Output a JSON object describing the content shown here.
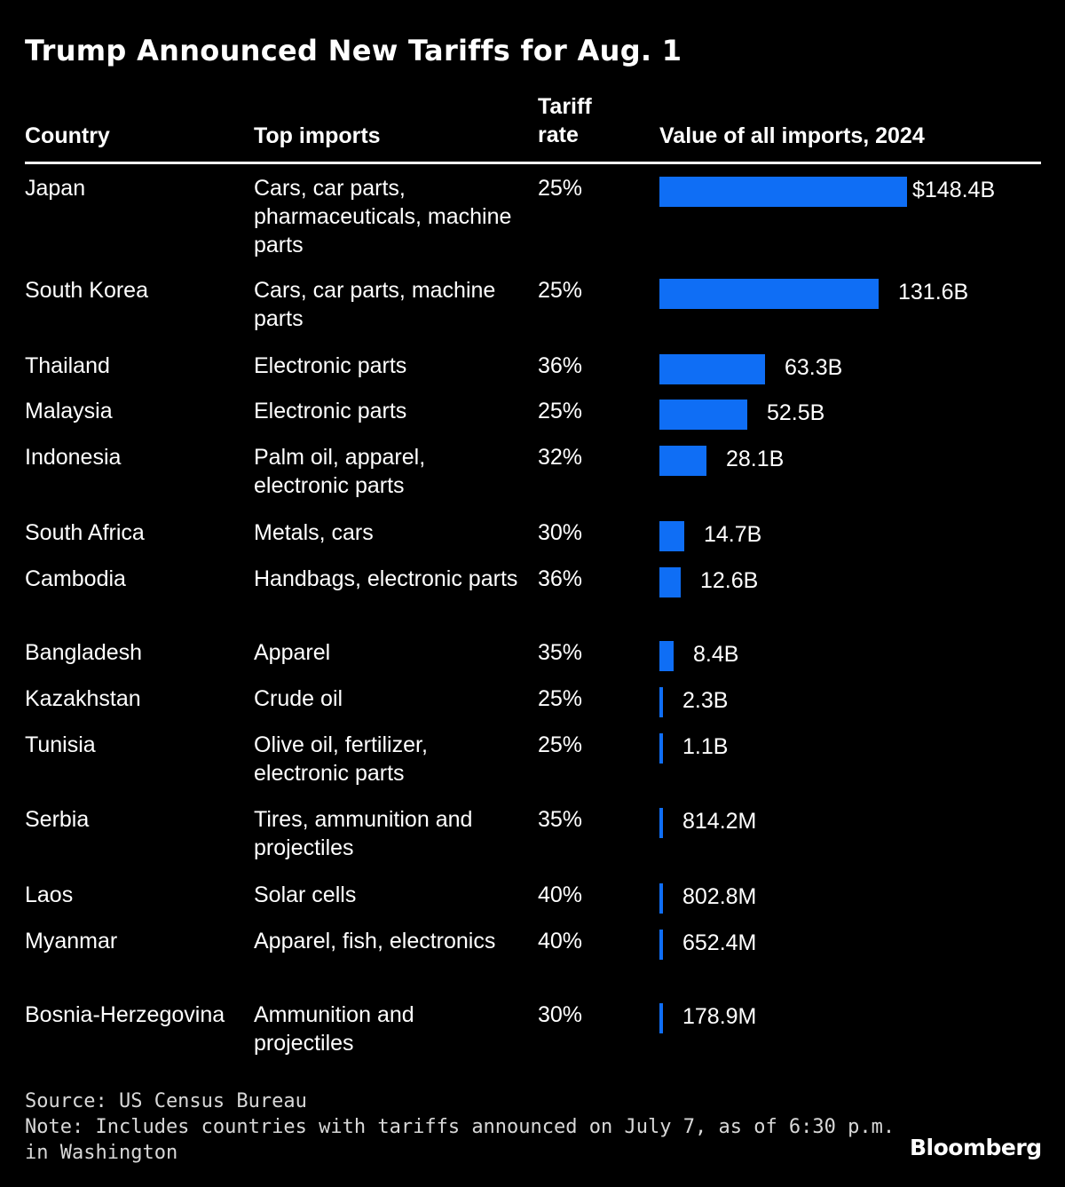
{
  "title": "Trump Announced New Tariffs for Aug. 1",
  "headers": {
    "country": "Country",
    "top_imports": "Top imports",
    "tariff_rate": "Tariff rate",
    "value": "Value of all imports, 2024"
  },
  "chart_data": {
    "type": "table",
    "value_unit": "billion USD",
    "columns": [
      "Country",
      "Top imports",
      "Tariff rate",
      "Value of all imports, 2024"
    ],
    "rows": [
      {
        "country": "Japan",
        "imports": "Cars, car parts, pharmaceuticals, machine parts",
        "tariff": "25%",
        "value": 148.4,
        "label": "$148.4B"
      },
      {
        "country": "South Korea",
        "imports": "Cars, car parts, machine parts",
        "tariff": "25%",
        "value": 131.6,
        "label": "131.6B"
      },
      {
        "country": "Thailand",
        "imports": "Electronic parts",
        "tariff": "36%",
        "value": 63.3,
        "label": "63.3B"
      },
      {
        "country": "Malaysia",
        "imports": "Electronic parts",
        "tariff": "25%",
        "value": 52.5,
        "label": "52.5B"
      },
      {
        "country": "Indonesia",
        "imports": "Palm oil, apparel, electronic parts",
        "tariff": "32%",
        "value": 28.1,
        "label": "28.1B"
      },
      {
        "country": "South Africa",
        "imports": "Metals, cars",
        "tariff": "30%",
        "value": 14.7,
        "label": "14.7B"
      },
      {
        "country": "Cambodia",
        "imports": "Handbags, electronic parts",
        "tariff": "36%",
        "value": 12.6,
        "label": "12.6B"
      },
      {
        "country": "Bangladesh",
        "imports": "Apparel",
        "tariff": "35%",
        "value": 8.4,
        "label": "8.4B"
      },
      {
        "country": "Kazakhstan",
        "imports": "Crude oil",
        "tariff": "25%",
        "value": 2.3,
        "label": "2.3B"
      },
      {
        "country": "Tunisia",
        "imports": "Olive oil, fertilizer, electronic parts",
        "tariff": "25%",
        "value": 1.1,
        "label": "1.1B"
      },
      {
        "country": "Serbia",
        "imports": "Tires, ammunition and projectiles",
        "tariff": "35%",
        "value": 0.8142,
        "label": "814.2M"
      },
      {
        "country": "Laos",
        "imports": "Solar cells",
        "tariff": "40%",
        "value": 0.8028,
        "label": "802.8M"
      },
      {
        "country": "Myanmar",
        "imports": "Apparel, fish, electronics",
        "tariff": "40%",
        "value": 0.6524,
        "label": "652.4M"
      },
      {
        "country": "Bosnia-Herzegovina",
        "imports": "Ammunition and projectiles",
        "tariff": "30%",
        "value": 0.1789,
        "label": "178.9M"
      }
    ]
  },
  "footer": {
    "source": "Source: US Census Bureau",
    "note_line1": "Note: Includes countries with tariffs announced on July 7, as of 6:30 p.m.",
    "note_line2": "in Washington",
    "brand": "Bloomberg"
  },
  "colors": {
    "background": "#000000",
    "bar": "#0f6ef5",
    "text": "#ffffff"
  }
}
